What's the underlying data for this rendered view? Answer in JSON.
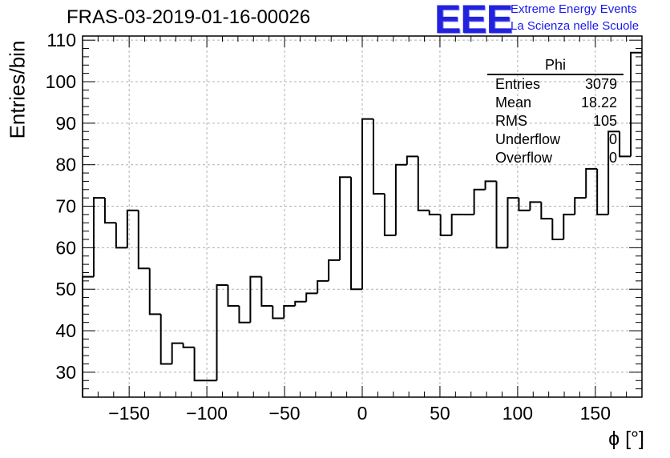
{
  "title": "FRAS-03-2019-01-16-00026",
  "logo": {
    "mark": "EEE",
    "line1": "Extreme Energy Events",
    "line2": "La Scienza nelle Scuole",
    "color": "#2222dd"
  },
  "stats": {
    "name": "Phi",
    "rows": [
      {
        "label": "Entries",
        "value": "3079"
      },
      {
        "label": "Mean",
        "value": "18.22"
      },
      {
        "label": "RMS",
        "value": "105"
      },
      {
        "label": "Underflow",
        "value": "0"
      },
      {
        "label": "Overflow",
        "value": "0"
      }
    ]
  },
  "chart_data": {
    "type": "bar",
    "style": "step-histogram",
    "title": "FRAS-03-2019-01-16-00026",
    "xlabel": "ϕ [°]",
    "ylabel": "Entries/bin",
    "xlim": [
      -180,
      180
    ],
    "ylim": [
      24,
      111
    ],
    "bin_width": 7.2,
    "x_ticks": [
      -150,
      -100,
      -50,
      0,
      50,
      100,
      150
    ],
    "x_tick_labels": [
      "−150",
      "−100",
      "−50",
      "0",
      "50",
      "100",
      "150"
    ],
    "y_ticks": [
      30,
      40,
      50,
      60,
      70,
      80,
      90,
      100,
      110
    ],
    "y_tick_labels": [
      "30",
      "40",
      "50",
      "60",
      "70",
      "80",
      "90",
      "100",
      "110"
    ],
    "grid": true,
    "values": [
      53,
      72,
      66,
      60,
      69,
      55,
      44,
      32,
      37,
      36,
      28,
      28,
      51,
      46,
      42,
      53,
      46,
      43,
      46,
      47,
      49,
      52,
      57,
      77,
      50,
      91,
      73,
      63,
      80,
      82,
      69,
      68,
      63,
      68,
      68,
      74,
      76,
      60,
      72,
      69,
      71,
      67,
      62,
      68,
      72,
      79,
      68,
      88,
      82,
      107
    ]
  }
}
